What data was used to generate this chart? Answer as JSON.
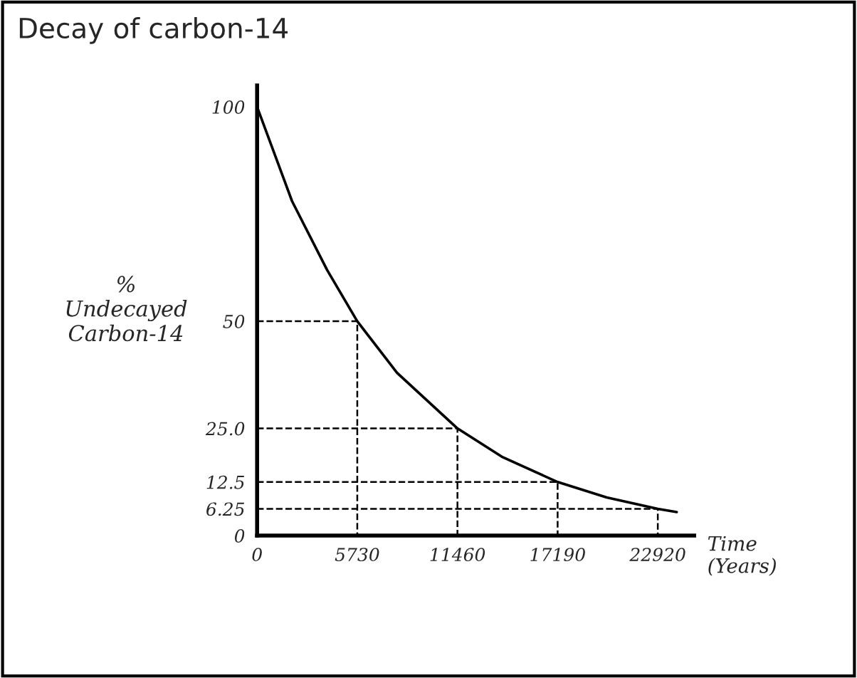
{
  "chart_data": {
    "type": "line",
    "title": "Decay of carbon-14",
    "ylabel": "%\nUndecayed\nCarbon-14",
    "xlabel": "Time\n(Years)",
    "x": [
      0,
      2000,
      4000,
      5730,
      8000,
      11460,
      14000,
      17190,
      20000,
      22920,
      24000
    ],
    "series": [
      {
        "color": "#000000",
        "values": [
          100,
          78,
          62,
          50,
          38,
          25,
          18.4,
          12.5,
          8.9,
          6.25,
          5.5
        ]
      },
      {
        "color": "#000000",
        "line_style": "dashed",
        "x": [
          0,
          5730,
          5730
        ],
        "values": [
          50,
          50,
          0
        ]
      },
      {
        "color": "#000000",
        "line_style": "dashed",
        "x": [
          0,
          11460,
          11460
        ],
        "values": [
          25,
          25,
          0
        ]
      },
      {
        "color": "#000000",
        "line_style": "dashed",
        "x": [
          0,
          17190,
          17190
        ],
        "values": [
          12.5,
          12.5,
          0
        ]
      },
      {
        "color": "#000000",
        "line_style": "dashed",
        "x": [
          0,
          22920,
          22920
        ],
        "values": [
          6.25,
          6.25,
          0
        ]
      }
    ],
    "xlim": [
      0,
      25000
    ],
    "ylim": [
      0,
      105
    ],
    "xticks": [
      0,
      5730,
      11460,
      17190,
      22920
    ],
    "yticks": [
      0,
      6.25,
      12.5,
      {
        "value": 25,
        "label": "25.0"
      },
      50,
      100
    ],
    "grid": false,
    "legend": false,
    "marker": "none",
    "line_style": "solid"
  }
}
